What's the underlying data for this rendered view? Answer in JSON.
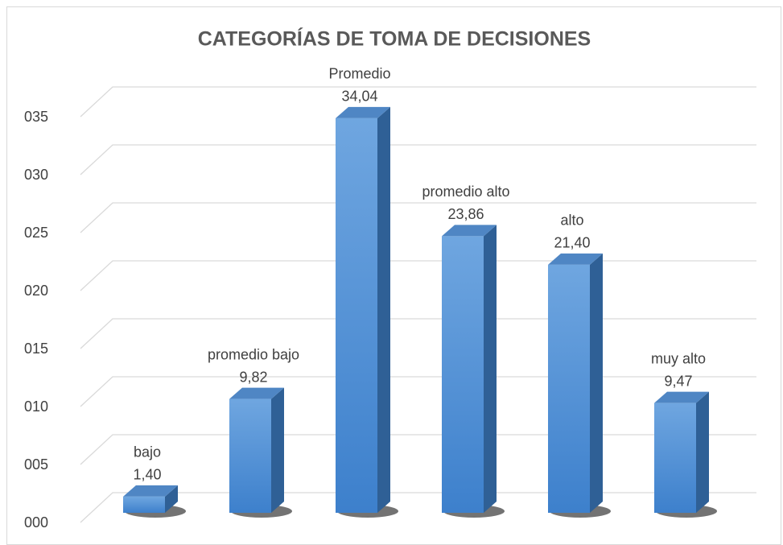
{
  "chart_data": {
    "type": "bar3d",
    "title": "CATEGORÍAS DE TOMA DE DECISIONES",
    "categories": [
      "bajo",
      "promedio bajo",
      "Promedio",
      "promedio alto",
      "alto",
      "muy alto"
    ],
    "values": [
      1.4,
      9.82,
      34.04,
      23.86,
      21.4,
      9.47
    ],
    "value_labels": [
      "1,40",
      "9,82",
      "34,04",
      "23,86",
      "21,40",
      "9,47"
    ],
    "color": "#4a8ad4",
    "ylim": [
      0,
      35
    ],
    "yticks": [
      {
        "value": 0,
        "label": "000"
      },
      {
        "value": 5,
        "label": "005"
      },
      {
        "value": 10,
        "label": "010"
      },
      {
        "value": 15,
        "label": "015"
      },
      {
        "value": 20,
        "label": "020"
      },
      {
        "value": 25,
        "label": "025"
      },
      {
        "value": 30,
        "label": "030"
      },
      {
        "value": 35,
        "label": "035"
      }
    ],
    "grid": true
  }
}
